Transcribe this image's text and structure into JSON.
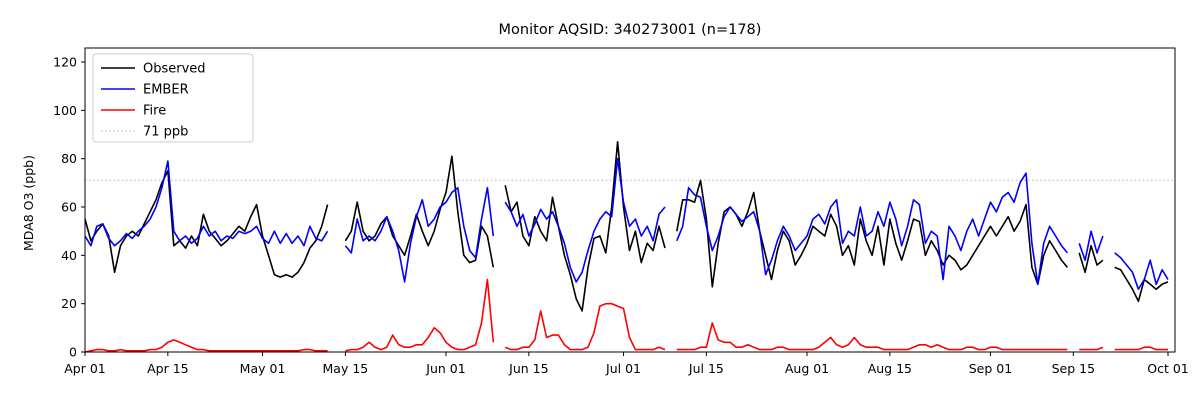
{
  "chart_data": {
    "type": "line",
    "title": "Monitor AQSID: 340273001 (n=178)",
    "aqsid": "340273001",
    "n_points": 178,
    "xlabel": "",
    "ylabel": "MDA8 O3 (ppb)",
    "ylim": [
      0,
      125
    ],
    "yticks": [
      0,
      20,
      40,
      60,
      80,
      100,
      120
    ],
    "x_unit": "daily values, day index 0 = Apr 01, day 183 = Oct 01",
    "xtick_days": [
      0,
      14,
      30,
      44,
      61,
      75,
      91,
      105,
      122,
      136,
      153,
      167,
      183
    ],
    "xtick_labels": [
      "Apr 01",
      "Apr 15",
      "May 01",
      "May 15",
      "Jun 01",
      "Jun 15",
      "Jul 01",
      "Jul 15",
      "Aug 01",
      "Aug 15",
      "Sep 01",
      "Sep 15",
      "Oct 01"
    ],
    "grid": false,
    "legend_position": "upper left",
    "month_order": [
      "Apr",
      "May",
      "Jun",
      "Jul",
      "Aug",
      "Sep",
      "Oct"
    ],
    "reference_line": {
      "value": 71,
      "label": "71 ppb",
      "color": "#c9c9c9",
      "style": "dotted"
    },
    "series": [
      {
        "name": "Observed",
        "color": "#000000",
        "values_by_month": {
          "Apr": [
            55,
            46,
            50,
            53,
            48,
            33,
            44,
            48,
            50,
            48,
            53,
            58,
            63,
            70,
            75,
            44,
            46,
            43,
            48,
            44,
            57,
            50,
            47,
            44,
            46,
            49,
            52,
            50,
            56,
            61
          ],
          "May": [
            48,
            40,
            32,
            31,
            32,
            31,
            33,
            37,
            43,
            46,
            52,
            61,
            null,
            null,
            46,
            50,
            62,
            50,
            46,
            48,
            53,
            56,
            48,
            44,
            40,
            48,
            57,
            50,
            44,
            50,
            59
          ],
          "Jun": [
            66,
            81,
            58,
            40,
            37,
            38,
            52,
            48,
            35,
            null,
            69,
            58,
            62,
            48,
            44,
            56,
            50,
            46,
            64,
            52,
            40,
            32,
            22,
            17,
            35,
            47,
            48,
            41,
            60,
            87
          ],
          "Jul": [
            60,
            42,
            50,
            37,
            45,
            42,
            52,
            43,
            null,
            50,
            63,
            63,
            62,
            71,
            55,
            27,
            45,
            58,
            60,
            57,
            52,
            58,
            66,
            50,
            40,
            30,
            42,
            50,
            46,
            36,
            40
          ],
          "Aug": [
            45,
            52,
            50,
            48,
            57,
            52,
            40,
            44,
            36,
            55,
            46,
            40,
            52,
            36,
            55,
            45,
            38,
            46,
            55,
            54,
            40,
            46,
            42,
            36,
            40,
            38,
            34,
            36,
            40,
            44,
            48
          ],
          "Sep": [
            52,
            48,
            52,
            56,
            50,
            54,
            61,
            35,
            28,
            40,
            46,
            42,
            38,
            35,
            null,
            41,
            33,
            44,
            36,
            38,
            null,
            35,
            34,
            30,
            26,
            21,
            30,
            28,
            26,
            28
          ],
          "Oct": [
            29
          ]
        }
      },
      {
        "name": "EMBER",
        "color": "#0000ff",
        "values_by_month": {
          "Apr": [
            48,
            44,
            52,
            53,
            47,
            44,
            46,
            49,
            47,
            50,
            52,
            55,
            60,
            68,
            79,
            50,
            46,
            48,
            45,
            47,
            52,
            48,
            50,
            46,
            48,
            47,
            50,
            49,
            50,
            52
          ],
          "May": [
            47,
            45,
            50,
            45,
            49,
            45,
            48,
            44,
            52,
            47,
            46,
            50,
            null,
            null,
            44,
            41,
            55,
            46,
            48,
            46,
            50,
            56,
            50,
            42,
            29,
            45,
            56,
            63,
            52,
            55,
            60
          ],
          "Jun": [
            62,
            66,
            68,
            52,
            42,
            39,
            55,
            68,
            48,
            null,
            62,
            58,
            52,
            57,
            48,
            53,
            59,
            55,
            58,
            52,
            45,
            35,
            29,
            33,
            42,
            50,
            55,
            58,
            56,
            80
          ],
          "Jul": [
            62,
            52,
            55,
            48,
            52,
            46,
            57,
            60,
            null,
            46,
            52,
            68,
            65,
            64,
            52,
            42,
            48,
            56,
            60,
            57,
            54,
            56,
            58,
            50,
            32,
            38,
            46,
            52,
            48,
            42,
            45
          ],
          "Aug": [
            48,
            55,
            57,
            53,
            60,
            63,
            45,
            50,
            48,
            60,
            48,
            50,
            58,
            52,
            62,
            55,
            44,
            52,
            63,
            61,
            45,
            50,
            48,
            30,
            52,
            48,
            42,
            50,
            55,
            48,
            55
          ],
          "Sep": [
            62,
            58,
            64,
            66,
            62,
            70,
            74,
            45,
            28,
            45,
            52,
            48,
            44,
            41,
            null,
            45,
            38,
            50,
            41,
            48,
            null,
            41,
            39,
            36,
            33,
            26,
            30,
            38,
            28,
            34
          ],
          "Oct": [
            30
          ]
        }
      },
      {
        "name": "Fire",
        "color": "#ff0000",
        "values_by_month": {
          "Apr": [
            0,
            0.5,
            1,
            1,
            0.5,
            0.5,
            1,
            0.5,
            0.5,
            0.5,
            0.5,
            1,
            1,
            2,
            4,
            5,
            4,
            3,
            2,
            1,
            1,
            0.5,
            0.5,
            0.5,
            0.5,
            0.5,
            0.5,
            0.5,
            0.5,
            0.5
          ],
          "May": [
            0.5,
            0.5,
            0.5,
            0.5,
            0.5,
            0.5,
            0.5,
            1,
            1,
            0.5,
            0.5,
            0.5,
            null,
            null,
            0.5,
            1,
            1,
            2,
            4,
            2,
            1,
            2,
            7,
            3,
            2,
            2,
            3,
            3,
            6,
            10,
            8
          ],
          "Jun": [
            4,
            2,
            1,
            1,
            2,
            3,
            12,
            30,
            4,
            null,
            2,
            1,
            1,
            2,
            2,
            5,
            17,
            6,
            7,
            7,
            3,
            1,
            1,
            1,
            2,
            8,
            19,
            20,
            20,
            19
          ],
          "Jul": [
            18,
            6,
            1,
            1,
            1,
            1,
            2,
            1,
            null,
            1,
            1,
            1,
            1,
            2,
            2,
            12,
            5,
            4,
            4,
            2,
            2,
            3,
            2,
            1,
            1,
            1,
            2,
            2,
            1,
            1,
            1
          ],
          "Aug": [
            1,
            1,
            2,
            4,
            6,
            3,
            2,
            3,
            6,
            3,
            2,
            2,
            2,
            1,
            1,
            1,
            1,
            1,
            2,
            3,
            3,
            2,
            3,
            2,
            1,
            1,
            1,
            2,
            2,
            1,
            1
          ],
          "Sep": [
            2,
            2,
            1,
            1,
            1,
            1,
            1,
            1,
            1,
            1,
            1,
            1,
            1,
            1,
            null,
            1,
            1,
            1,
            1,
            2,
            null,
            1,
            1,
            1,
            1,
            1,
            2,
            2,
            1,
            1
          ],
          "Oct": [
            1
          ]
        }
      }
    ],
    "legend_entries": [
      "Observed",
      "EMBER",
      "Fire",
      "71 ppb"
    ]
  }
}
